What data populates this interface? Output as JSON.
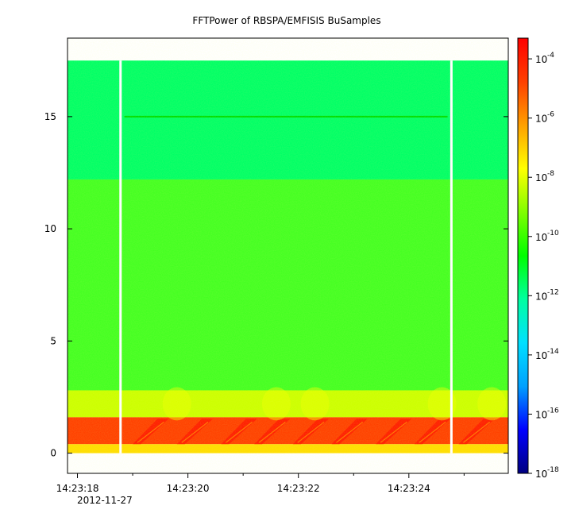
{
  "chart_data": {
    "type": "heatmap",
    "title": "FFTPower of RBSPA/EMFISIS  BuSamples",
    "date_label": "2012-11-27",
    "xlabel": "",
    "ylabel": "",
    "x_ticks": [
      {
        "label": "14:23:18",
        "t": 0
      },
      {
        "label": "14:23:20",
        "t": 2
      },
      {
        "label": "14:23:22",
        "t": 4
      },
      {
        "label": "14:23:24",
        "t": 6
      }
    ],
    "x_minor_ticks": [
      1,
      3,
      5,
      7
    ],
    "xlim": [
      -0.18,
      7.8
    ],
    "y_ticks": [
      0,
      5,
      10,
      15
    ],
    "ylim": [
      -0.9,
      18.5
    ],
    "data_extent": {
      "x": [
        -0.18,
        7.8
      ],
      "y": [
        0,
        17.5
      ]
    },
    "gaps_seconds": [
      0.78,
      6.77
    ],
    "colorbar": {
      "scale": "log",
      "range_exponent": [
        -18,
        -3.3
      ],
      "tick_exponents": [
        -4,
        -6,
        -8,
        -10,
        -12,
        -14,
        -16,
        -18
      ],
      "tick_base": "10",
      "colormap_stops": [
        "#000080",
        "#0000ff",
        "#00a0ff",
        "#00e0ff",
        "#00ffa0",
        "#00ff00",
        "#80ff00",
        "#ffff00",
        "#ffa000",
        "#ff4000",
        "#ff0000"
      ]
    },
    "bands": [
      {
        "y_range": [
          12.2,
          17.5
        ],
        "log_power": -12.7,
        "color": "#00ff66"
      },
      {
        "y_range": [
          2.8,
          12.2
        ],
        "log_power": -10.8,
        "color": "#44ff22"
      },
      {
        "y_range": [
          1.6,
          2.8
        ],
        "log_power": -9.0,
        "color": "#ccff00"
      },
      {
        "y_range": [
          0.4,
          1.6
        ],
        "log_power": -4.5,
        "color": "#ff4000"
      },
      {
        "y_range": [
          0,
          0.4
        ],
        "log_power": -7.5,
        "color": "#ffdd00"
      }
    ],
    "line_feature": {
      "y": 15,
      "x_range": [
        0.85,
        6.7
      ],
      "color": "#00dd00"
    }
  }
}
